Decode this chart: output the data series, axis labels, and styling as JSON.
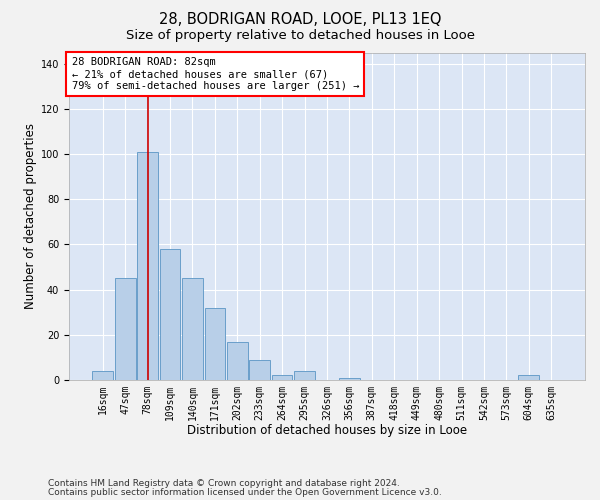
{
  "title": "28, BODRIGAN ROAD, LOOE, PL13 1EQ",
  "subtitle": "Size of property relative to detached houses in Looe",
  "xlabel": "Distribution of detached houses by size in Looe",
  "ylabel": "Number of detached properties",
  "bar_labels": [
    "16sqm",
    "47sqm",
    "78sqm",
    "109sqm",
    "140sqm",
    "171sqm",
    "202sqm",
    "233sqm",
    "264sqm",
    "295sqm",
    "326sqm",
    "356sqm",
    "387sqm",
    "418sqm",
    "449sqm",
    "480sqm",
    "511sqm",
    "542sqm",
    "573sqm",
    "604sqm",
    "635sqm"
  ],
  "bar_heights": [
    4,
    45,
    101,
    58,
    45,
    32,
    17,
    9,
    2,
    4,
    0,
    1,
    0,
    0,
    0,
    0,
    0,
    0,
    0,
    2,
    0
  ],
  "bar_color": "#b8cfe8",
  "bar_edgecolor": "#6a9fca",
  "bar_linewidth": 0.7,
  "vline_x_index": 2,
  "vline_color": "#cc0000",
  "vline_linewidth": 1.2,
  "ylim": [
    0,
    145
  ],
  "yticks": [
    0,
    20,
    40,
    60,
    80,
    100,
    120,
    140
  ],
  "plot_bg_color": "#dce6f5",
  "fig_bg_color": "#f2f2f2",
  "annotation_line1": "28 BODRIGAN ROAD: 82sqm",
  "annotation_line2": "← 21% of detached houses are smaller (67)",
  "annotation_line3": "79% of semi-detached houses are larger (251) →",
  "footer_line1": "Contains HM Land Registry data © Crown copyright and database right 2024.",
  "footer_line2": "Contains public sector information licensed under the Open Government Licence v3.0.",
  "grid_color": "#ffffff",
  "title_fontsize": 10.5,
  "subtitle_fontsize": 9.5,
  "axis_label_fontsize": 8.5,
  "tick_fontsize": 7,
  "annotation_fontsize": 7.5,
  "footer_fontsize": 6.5
}
